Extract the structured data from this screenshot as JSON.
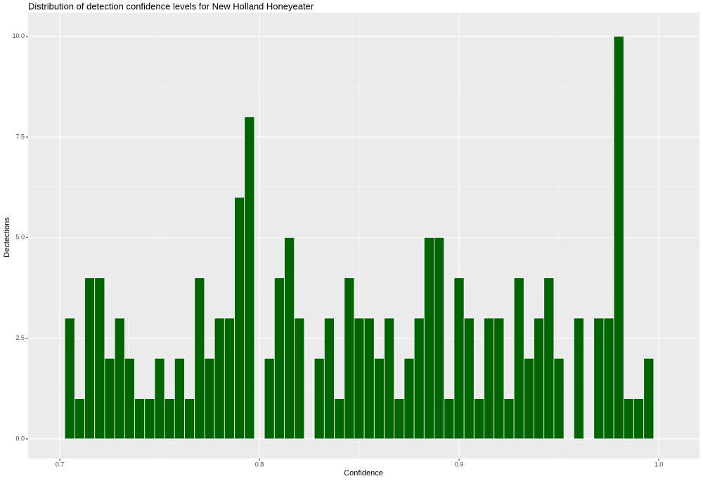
{
  "chart_data": {
    "type": "histogram",
    "title": "Distribution of detection confidence levels for New Holland Honeyeater",
    "x_label": "Confidence",
    "y_label": "Dectections",
    "bins": [
      0.7025,
      0.7075,
      0.7125,
      0.7175,
      0.7225,
      0.7275,
      0.7325,
      0.7375,
      0.7425,
      0.7475,
      0.7525,
      0.7575,
      0.7625,
      0.7675,
      0.7725,
      0.7775,
      0.7825,
      0.7875,
      0.7925,
      0.7975,
      0.8025,
      0.8075,
      0.8125,
      0.8175,
      0.8225,
      0.8275,
      0.8325,
      0.8375,
      0.8425,
      0.8475,
      0.8525,
      0.8575,
      0.8625,
      0.8675,
      0.8725,
      0.8775,
      0.8825,
      0.8875,
      0.8925,
      0.8975,
      0.9025,
      0.9075,
      0.9125,
      0.9175,
      0.9225,
      0.9275,
      0.9325,
      0.9375,
      0.9425,
      0.9475,
      0.9525,
      0.9575,
      0.9625,
      0.9675,
      0.9725,
      0.9775,
      0.9825,
      0.9875,
      0.9925,
      0.9975
    ],
    "values": [
      3,
      1,
      4,
      4,
      2,
      3,
      2,
      1,
      1,
      2,
      1,
      2,
      1,
      4,
      2,
      3,
      3,
      6,
      8,
      0,
      2,
      4,
      5,
      3,
      0,
      2,
      3,
      1,
      4,
      3,
      3,
      2,
      3,
      1,
      2,
      3,
      5,
      5,
      1,
      4,
      3,
      1,
      3,
      3,
      1,
      4,
      2,
      3,
      4,
      2,
      0,
      3,
      0,
      3,
      3,
      10,
      1,
      1,
      2
    ],
    "color": "#006400",
    "xlim": [
      0.68415,
      1.02042
    ],
    "ylim": [
      -0.49,
      10.59
    ],
    "xticks": [
      0.7,
      0.8,
      0.9,
      {
        "value": 1.0,
        "label": "1.0"
      }
    ],
    "yticks": [
      {
        "value": 0,
        "label": "0.0"
      },
      2.5,
      {
        "value": 5,
        "label": "5.0"
      },
      7.5,
      {
        "value": 10,
        "label": "10.0"
      }
    ],
    "grid": true
  }
}
